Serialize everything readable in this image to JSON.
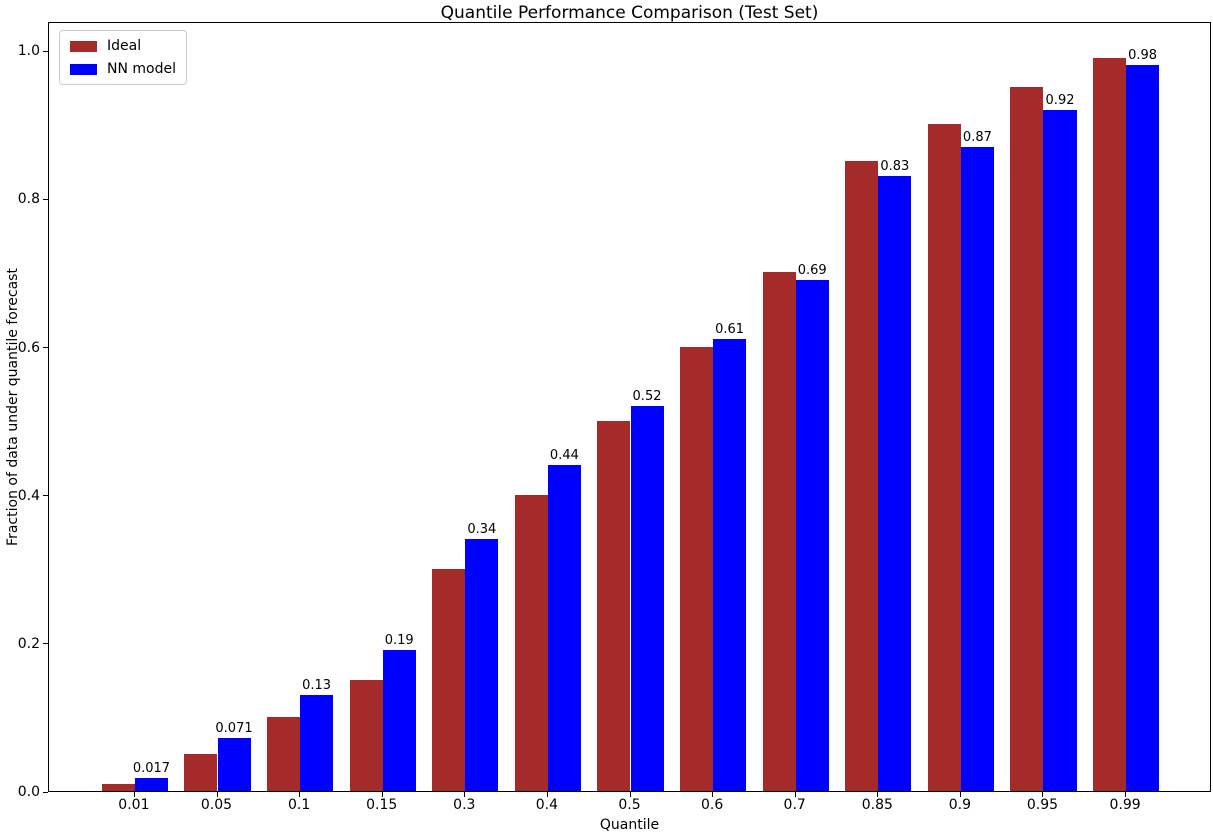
{
  "chart_data": {
    "type": "bar",
    "title": "Quantile Performance Comparison (Test Set)",
    "xlabel": "Quantile",
    "ylabel": "Fraction of data under quantile forecast",
    "categories": [
      "0.01",
      "0.05",
      "0.1",
      "0.15",
      "0.3",
      "0.4",
      "0.5",
      "0.6",
      "0.7",
      "0.85",
      "0.9",
      "0.95",
      "0.99"
    ],
    "series": [
      {
        "name": "Ideal",
        "color": "#a52a2a",
        "values": [
          0.01,
          0.05,
          0.1,
          0.15,
          0.3,
          0.4,
          0.5,
          0.6,
          0.7,
          0.85,
          0.9,
          0.95,
          0.99
        ]
      },
      {
        "name": "NN model",
        "color": "#0000ff",
        "values": [
          0.017,
          0.071,
          0.13,
          0.19,
          0.34,
          0.44,
          0.52,
          0.61,
          0.69,
          0.83,
          0.87,
          0.92,
          0.98
        ],
        "bar_labels": [
          "0.017",
          "0.071",
          "0.13",
          "0.19",
          "0.34",
          "0.44",
          "0.52",
          "0.61",
          "0.69",
          "0.83",
          "0.87",
          "0.92",
          "0.98"
        ]
      }
    ],
    "yticks": [
      "0.0",
      "0.2",
      "0.4",
      "0.6",
      "0.8",
      "1.0"
    ],
    "ylim": [
      0,
      1.0395
    ],
    "bar_width": 0.4,
    "grid": false,
    "legend_position": "upper left",
    "background_color": "#ffffff",
    "axis_color": "#000000"
  }
}
